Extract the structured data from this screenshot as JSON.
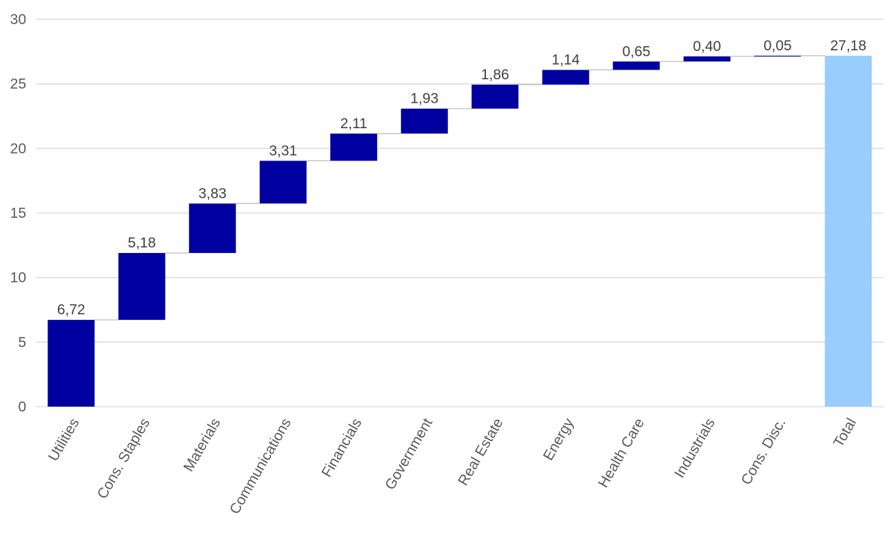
{
  "chart_data": {
    "type": "bar",
    "subtype": "waterfall",
    "title": "",
    "xlabel": "",
    "ylabel": "",
    "ylim": [
      0,
      30
    ],
    "yticks": [
      0,
      5,
      10,
      15,
      20,
      25,
      30
    ],
    "grid": true,
    "legend": "none",
    "categories": [
      "Utilities",
      "Cons. Staples",
      "Materials",
      "Communications",
      "Financials",
      "Government",
      "Real Estate",
      "Energy",
      "Health Care",
      "Industrials",
      "Cons. Disc.",
      "Total"
    ],
    "values": [
      6.72,
      5.18,
      3.83,
      3.31,
      2.11,
      1.93,
      1.86,
      1.14,
      0.65,
      0.4,
      0.05,
      27.18
    ],
    "data_labels": [
      "6,72",
      "5,18",
      "3,83",
      "3,31",
      "2,11",
      "1,93",
      "1,86",
      "1,14",
      "0,65",
      "0,40",
      "0,05",
      "27,18"
    ],
    "is_total": [
      false,
      false,
      false,
      false,
      false,
      false,
      false,
      false,
      false,
      false,
      false,
      true
    ],
    "colors": {
      "increase": "#0000A0",
      "total": "#99CCFF",
      "gridline": "#D9D9D9",
      "connector": "#BFBFBF"
    }
  }
}
